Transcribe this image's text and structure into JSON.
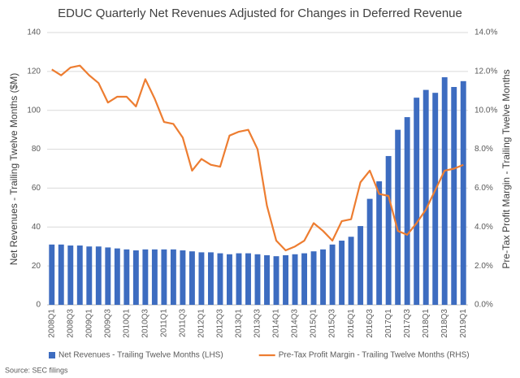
{
  "chart_data": {
    "type": "bar-line",
    "title": "EDUC Quarterly Net Revenues Adjusted for Changes in Deferred Revenue",
    "y_label": "Net Revenues - Trailing Twelve Months ($M)",
    "y2_label": "Pre-Tax Profit Margin - Trailing Twelve Months",
    "source": "Source: SEC filings",
    "categories": [
      "2008Q1",
      null,
      "2008Q3",
      null,
      "2009Q1",
      null,
      "2009Q3",
      null,
      "2010Q1",
      null,
      "2010Q3",
      null,
      "2011Q1",
      null,
      "2011Q3",
      null,
      "2012Q1",
      null,
      "2012Q3",
      null,
      "2013Q1",
      null,
      "2013Q3",
      null,
      "2014Q1",
      null,
      "2014Q3",
      null,
      "2015Q1",
      null,
      "2015Q3",
      null,
      "2016Q1",
      null,
      "2016Q3",
      null,
      "2017Q1",
      null,
      "2017Q3",
      null,
      "2018Q1",
      null,
      "2018Q3",
      null,
      "2019Q1"
    ],
    "series": [
      {
        "name": "Net Revenues - Trailing Twelve Months (LHS)",
        "type": "bar",
        "color": "#3d6cc0",
        "axis": "y",
        "values": [
          31,
          31,
          30.5,
          30.5,
          30,
          30,
          29.5,
          29,
          28.5,
          28,
          28.5,
          28.5,
          28.5,
          28.5,
          28,
          27.5,
          27,
          27,
          26.5,
          26,
          26.5,
          26.5,
          26,
          25.5,
          25,
          25.5,
          26,
          26.5,
          27.5,
          28.5,
          31,
          33,
          35,
          40.5,
          54.5,
          63.5,
          76.5,
          90,
          96.5,
          106.5,
          110.5,
          109,
          117,
          112,
          115
        ]
      },
      {
        "name": "Pre-Tax Profit Margin - Trailing Twelve Months (RHS)",
        "type": "line",
        "color": "#ed7d31",
        "axis": "y2",
        "values": [
          12.1,
          11.8,
          12.2,
          12.3,
          11.8,
          11.4,
          10.4,
          10.7,
          10.7,
          10.2,
          11.6,
          10.6,
          9.4,
          9.3,
          8.6,
          6.9,
          7.5,
          7.2,
          7.1,
          8.7,
          8.9,
          9.0,
          8.0,
          5.1,
          3.3,
          2.8,
          3.0,
          3.3,
          4.2,
          3.8,
          3.3,
          4.3,
          4.4,
          6.3,
          6.9,
          5.7,
          5.6,
          3.8,
          3.6,
          4.2,
          4.9,
          5.9,
          6.9,
          7.0,
          7.2
        ]
      }
    ],
    "ylim": [
      0,
      140
    ],
    "yticks": [
      0,
      20,
      40,
      60,
      80,
      100,
      120,
      140
    ],
    "y2lim": [
      0,
      14
    ],
    "y2ticks": [
      {
        "value": 0,
        "label": "0.0%"
      },
      {
        "value": 2,
        "label": "2.0%"
      },
      {
        "value": 4,
        "label": "4.0%"
      },
      {
        "value": 6,
        "label": "6.0%"
      },
      {
        "value": 8,
        "label": "8.0%"
      },
      {
        "value": 10,
        "label": "10.0%"
      },
      {
        "value": 12,
        "label": "12.0%"
      },
      {
        "value": 14,
        "label": "14.0%"
      }
    ],
    "grid": true
  }
}
